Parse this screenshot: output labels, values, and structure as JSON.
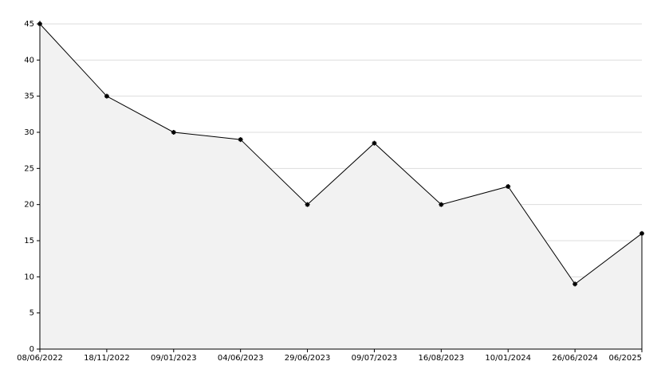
{
  "chart_data": {
    "type": "area",
    "categories": [
      "08/06/2022",
      "18/11/2022",
      "09/01/2023",
      "04/06/2023",
      "29/06/2023",
      "09/07/2023",
      "16/08/2023",
      "10/01/2024",
      "26/06/2024",
      "06/2025"
    ],
    "values": [
      45,
      35,
      30,
      29,
      20,
      28.5,
      20,
      22.5,
      9,
      16
    ],
    "color": "#000000",
    "fill": "#f2f2f2",
    "ylim": [
      0,
      45
    ],
    "yticks": [
      0,
      5,
      10,
      15,
      20,
      25,
      30,
      35,
      40,
      45
    ],
    "grid": true
  }
}
